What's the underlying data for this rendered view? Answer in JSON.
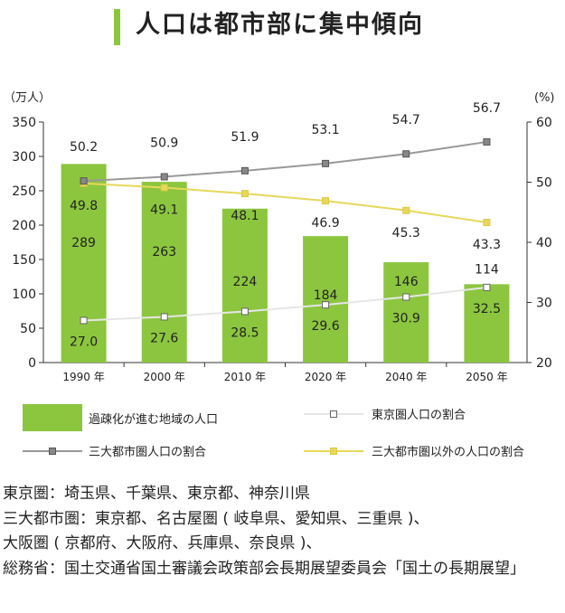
{
  "title": "人口は都市部に集中傾向",
  "colors": {
    "accent": "#8cc63f",
    "bar": "#8cc63f",
    "tokyo_line": "#e6e6e6",
    "big3_line": "#999999",
    "other_line": "#e6d85a",
    "axis": "#333333"
  },
  "chart_data": {
    "type": "bar",
    "left_unit": "（万人）",
    "right_unit": "(%)",
    "categories": [
      "1990 年",
      "2000 年",
      "2010 年",
      "2020 年",
      "2040 年",
      "2050 年"
    ],
    "ylim": [
      0,
      350
    ],
    "yticks": [
      0,
      50,
      100,
      150,
      200,
      250,
      300,
      350
    ],
    "y2lim": [
      20,
      60
    ],
    "y2ticks": [
      20,
      30,
      40,
      50,
      60
    ],
    "series": [
      {
        "name": "過疎化が進む地域の人口",
        "kind": "bar",
        "axis": "left",
        "color": "#8cc63f",
        "values": [
          289,
          263,
          224,
          184,
          146,
          114
        ],
        "labels": [
          "289",
          "263",
          "224",
          "184",
          "146",
          "114"
        ]
      },
      {
        "name": "東京圏人口の割合",
        "kind": "line",
        "axis": "right",
        "color": "#e6e6e6",
        "values": [
          27.0,
          27.6,
          28.5,
          29.6,
          30.9,
          32.5
        ],
        "labels": [
          "27.0",
          "27.6",
          "28.5",
          "29.6",
          "30.9",
          "32.5"
        ]
      },
      {
        "name": "三大都市圏人口の割合",
        "kind": "line",
        "axis": "right",
        "color": "#999999",
        "values": [
          50.2,
          50.9,
          51.9,
          53.1,
          54.7,
          56.7
        ],
        "labels": [
          "50.2",
          "50.9",
          "51.9",
          "53.1",
          "54.7",
          "56.7"
        ]
      },
      {
        "name": "三大都市圏以外の人口の割合",
        "kind": "line",
        "axis": "right",
        "color": "#e6d85a",
        "values": [
          49.8,
          49.1,
          48.1,
          46.9,
          45.3,
          43.3
        ],
        "labels": [
          "49.8",
          "49.1",
          "48.1",
          "46.9",
          "45.3",
          "43.3"
        ]
      }
    ],
    "grid": false,
    "legend": "bottom"
  },
  "notes": [
    "東京圏：埼玉県、千葉県、東京都、神奈川県",
    "三大都市圏：東京都、名古屋圏 ( 岐阜県、愛知県、三重県 )、",
    "大阪圏 ( 京都府、大阪府、兵庫県、奈良県 )、",
    "総務省：国土交通省国土審議会政策部会長期展望委員会「国土の長期展望」"
  ]
}
